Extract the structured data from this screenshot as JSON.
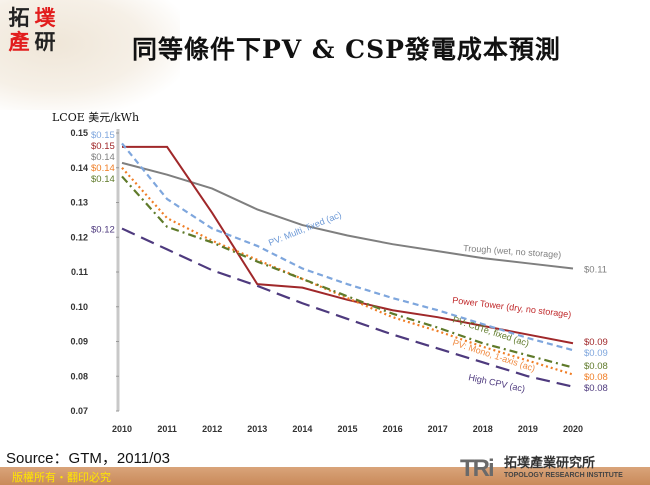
{
  "header": {
    "title": "同等條件下PV & CSP發電成本預測",
    "logo_chars": [
      "拓",
      "墣",
      "產",
      "研"
    ]
  },
  "footer": {
    "source": "Source：GTM，2011/03",
    "copyright": "版權所有・翻印必究",
    "org_mark": "TRi",
    "org_name_cn": "拓墣產業研究所",
    "org_name_en": "TOPOLOGY RESEARCH INSTITUTE"
  },
  "chart_data": {
    "type": "line",
    "title": "同等條件下PV & CSP發電成本預測",
    "ylabel": "LCOE 美元/kWh",
    "xlabel": "",
    "ylim": [
      0.07,
      0.15
    ],
    "yticks": [
      "0.07",
      "0.08",
      "0.09",
      "0.10",
      "0.11",
      "0.12",
      "0.13",
      "0.14",
      "0.15"
    ],
    "x": [
      "2010",
      "2011",
      "2012",
      "2013",
      "2014",
      "2015",
      "2016",
      "2017",
      "2018",
      "2019",
      "2020"
    ],
    "series": [
      {
        "name": "Trough (wet, no storage)",
        "color": "#7f7f7f",
        "dash": "",
        "start_label": "$0.14",
        "end_label": "$0.11",
        "values": [
          0.1414,
          0.138,
          0.134,
          0.128,
          0.1235,
          0.1205,
          0.118,
          0.116,
          0.114,
          0.1125,
          0.111
        ]
      },
      {
        "name": "Power Tower (dry, no storage)",
        "color": "#a0282a",
        "dash": "",
        "start_label": "$0.15",
        "end_label": "$0.09",
        "values": [
          0.146,
          0.146,
          0.127,
          0.1065,
          0.1055,
          0.102,
          0.099,
          0.097,
          0.0945,
          0.092,
          0.0895
        ]
      },
      {
        "name": "PV: Multi, fixed (ac)",
        "color": "#7ea6dd",
        "dash": "6,4",
        "start_label": "$0.15",
        "end_label": "$0.09",
        "values": [
          0.147,
          0.131,
          0.1225,
          0.1175,
          0.111,
          0.1065,
          0.1025,
          0.099,
          0.095,
          0.091,
          0.0875
        ]
      },
      {
        "name": "PV: Mono, 1-axis (ac)",
        "color": "#f07e26",
        "dash": "2,3",
        "start_label": "$0.14",
        "end_label": "$0.08",
        "values": [
          0.14,
          0.1255,
          0.119,
          0.1135,
          0.108,
          0.1025,
          0.097,
          0.093,
          0.0885,
          0.0845,
          0.0805
        ]
      },
      {
        "name": "PV: CdTe, fixed (ac)",
        "color": "#5f7a2a",
        "dash": "8,4,2,4",
        "start_label": "$0.14",
        "end_label": "$0.08",
        "values": [
          0.1375,
          0.123,
          0.1185,
          0.113,
          0.108,
          0.103,
          0.098,
          0.094,
          0.0895,
          0.086,
          0.0825
        ]
      },
      {
        "name": "High CPV (ac)",
        "color": "#4e3a7e",
        "dash": "14,7",
        "start_label": "$0.12",
        "end_label": "$0.08",
        "values": [
          0.1225,
          0.1165,
          0.1105,
          0.106,
          0.101,
          0.0965,
          0.092,
          0.088,
          0.084,
          0.08,
          0.077
        ]
      }
    ]
  }
}
